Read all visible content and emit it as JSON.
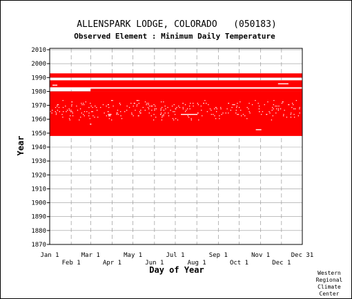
{
  "chart_data": {
    "type": "heatmap",
    "title": "ALLENSPARK LODGE, COLORADO   (050183)",
    "subtitle": "Observed Element : Minimum Daily Temperature",
    "xlabel": "Day of Year",
    "ylabel": "Year",
    "xlim": [
      1,
      365
    ],
    "ylim": [
      1870,
      2011
    ],
    "x_ticks_upper": [
      {
        "label": "Jan 1",
        "day": 1
      },
      {
        "label": "Mar 1",
        "day": 60
      },
      {
        "label": "May 1",
        "day": 121
      },
      {
        "label": "Jul 1",
        "day": 182
      },
      {
        "label": "Sep 1",
        "day": 244
      },
      {
        "label": "Nov 1",
        "day": 305
      },
      {
        "label": "Dec 31",
        "day": 365
      }
    ],
    "x_ticks_lower": [
      {
        "label": "Feb 1",
        "day": 32
      },
      {
        "label": "Apr 1",
        "day": 91
      },
      {
        "label": "Jun 1",
        "day": 152
      },
      {
        "label": "Aug 1",
        "day": 213
      },
      {
        "label": "Oct 1",
        "day": 274
      },
      {
        "label": "Dec 1",
        "day": 335
      }
    ],
    "y_ticks": [
      1870,
      1880,
      1890,
      1900,
      1910,
      1920,
      1930,
      1940,
      1950,
      1960,
      1970,
      1980,
      1990,
      2000,
      2010
    ],
    "grid": true,
    "data_color": "#ff0000",
    "coverage": [
      {
        "year_start": 1948,
        "year_end": 1979,
        "day_start": 1,
        "day_end": 365
      },
      {
        "year_start": 1980,
        "year_end": 1981,
        "day_start": 60,
        "day_end": 365
      },
      {
        "year_start": 1983,
        "year_end": 1987,
        "day_start": 1,
        "day_end": 365
      },
      {
        "year_start": 1990,
        "year_end": 1992,
        "day_start": 1,
        "day_end": 365
      }
    ],
    "gaps": [
      {
        "year": 1952,
        "day_start": 298,
        "day_end": 306
      },
      {
        "year": 1956,
        "day_start": 59,
        "day_end": 61
      },
      {
        "year": 1963,
        "day_start": 190,
        "day_end": 214
      },
      {
        "year": 1963,
        "day_start": 85,
        "day_end": 90
      },
      {
        "year": 1947,
        "day_start": 215,
        "day_end": 240
      },
      {
        "year": 1984,
        "day_start": 5,
        "day_end": 12
      },
      {
        "year": 1985,
        "day_start": 330,
        "day_end": 345
      }
    ]
  },
  "credit": {
    "line1": "Western",
    "line2": "Regional",
    "line3": "Climate",
    "line4": "Center"
  }
}
